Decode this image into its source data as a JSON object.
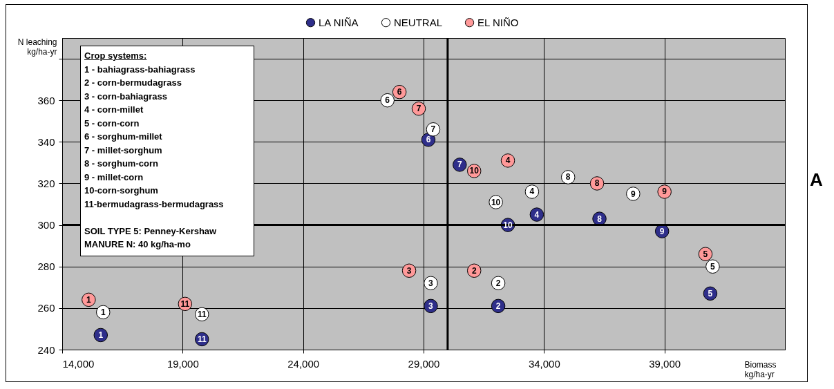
{
  "chart_data": {
    "type": "scatter",
    "xlabel": "Biomass\nkg/ha-yr",
    "ylabel": "N leaching\nkg/ha-yr",
    "xlim": [
      14000,
      44000
    ],
    "xticks": [
      {
        "value": 14000,
        "label": "14,000"
      },
      {
        "value": 19000,
        "label": "19,000"
      },
      {
        "value": 24000,
        "label": "24,000"
      },
      {
        "value": 29000,
        "label": "29,000"
      },
      {
        "value": 34000,
        "label": "34,000"
      },
      {
        "value": 39000,
        "label": "39,000"
      }
    ],
    "ylim": [
      240,
      390
    ],
    "yticks": [
      240,
      260,
      280,
      300,
      320,
      340,
      360,
      {
        "value": 380,
        "label": null
      }
    ],
    "grid": true,
    "legend": "top",
    "marker": "circle",
    "ref_lines": [
      {
        "axis": "x",
        "value": 30000,
        "label": null
      },
      {
        "axis": "y",
        "value": 300,
        "label": null
      }
    ],
    "series": [
      {
        "name": "LA NIÑA",
        "color": "#2e2e8a",
        "x": [
          15600,
          32100,
          29300,
          33700,
          40900,
          29200,
          30500,
          36300,
          38900,
          32500,
          19800
        ],
        "values": [
          247,
          261,
          261,
          305,
          267,
          341,
          329,
          303,
          297,
          300,
          245
        ]
      },
      {
        "name": "NEUTRAL",
        "color": "#ffffff",
        "x": [
          15700,
          32100,
          29300,
          33500,
          41000,
          27500,
          29400,
          35000,
          37700,
          32000,
          19800
        ],
        "values": [
          258,
          272,
          272,
          316,
          280,
          360,
          346,
          323,
          315,
          311,
          257
        ]
      },
      {
        "name": "EL NIÑO",
        "color": "#ff9999",
        "x": [
          15100,
          31100,
          28400,
          32500,
          40700,
          28000,
          28800,
          36200,
          39000,
          31100,
          19100
        ],
        "values": [
          264,
          278,
          278,
          331,
          286,
          364,
          356,
          320,
          316,
          326,
          262
        ]
      }
    ],
    "annotations": [
      "Crop systems:",
      "1 - bahiagrass-bahiagrass",
      "2 - corn-bermudagrass",
      "3 - corn-bahiagrass",
      "4 - corn-millet",
      "5 - corn-corn",
      "6 - sorghum-millet",
      "7 - millet-sorghum",
      "8 - sorghum-corn",
      "9 - millet-corn",
      "10-corn-sorghum",
      "11-bermudagrass-bermudagrass",
      "SOIL TYPE 5: Penney-Kershaw",
      "MANURE N: 40 kg/ha-mo",
      "A",
      {
        "text": "1",
        "x": 15600,
        "y": 247
      },
      {
        "text": "2",
        "x": 32100,
        "y": 261
      },
      {
        "text": "3",
        "x": 29300,
        "y": 261
      },
      {
        "text": "4",
        "x": 33700,
        "y": 305
      },
      {
        "text": "5",
        "x": 40900,
        "y": 267
      },
      {
        "text": "6",
        "x": 29200,
        "y": 341
      },
      {
        "text": "7",
        "x": 30500,
        "y": 329
      },
      {
        "text": "8",
        "x": 36300,
        "y": 303
      },
      {
        "text": "9",
        "x": 38900,
        "y": 297
      },
      {
        "text": "10",
        "x": 32500,
        "y": 300
      },
      {
        "text": "11",
        "x": 19800,
        "y": 245
      },
      {
        "text": "1",
        "x": 15700,
        "y": 258
      },
      {
        "text": "2",
        "x": 32100,
        "y": 272
      },
      {
        "text": "3",
        "x": 29300,
        "y": 272
      },
      {
        "text": "4",
        "x": 33500,
        "y": 316
      },
      {
        "text": "5",
        "x": 41000,
        "y": 280
      },
      {
        "text": "6",
        "x": 27500,
        "y": 360
      },
      {
        "text": "7",
        "x": 29400,
        "y": 346
      },
      {
        "text": "8",
        "x": 35000,
        "y": 323
      },
      {
        "text": "9",
        "x": 37700,
        "y": 315
      },
      {
        "text": "10",
        "x": 32000,
        "y": 311
      },
      {
        "text": "11",
        "x": 19800,
        "y": 257
      },
      {
        "text": "1",
        "x": 15100,
        "y": 264
      },
      {
        "text": "2",
        "x": 31100,
        "y": 278
      },
      {
        "text": "3",
        "x": 28400,
        "y": 278
      },
      {
        "text": "4",
        "x": 32500,
        "y": 331
      },
      {
        "text": "5",
        "x": 40700,
        "y": 286
      },
      {
        "text": "6",
        "x": 28000,
        "y": 364
      },
      {
        "text": "7",
        "x": 28800,
        "y": 356
      },
      {
        "text": "8",
        "x": 36200,
        "y": 320
      },
      {
        "text": "9",
        "x": 39000,
        "y": 316
      },
      {
        "text": "10",
        "x": 31100,
        "y": 326
      },
      {
        "text": "11",
        "x": 19100,
        "y": 262
      }
    ]
  }
}
